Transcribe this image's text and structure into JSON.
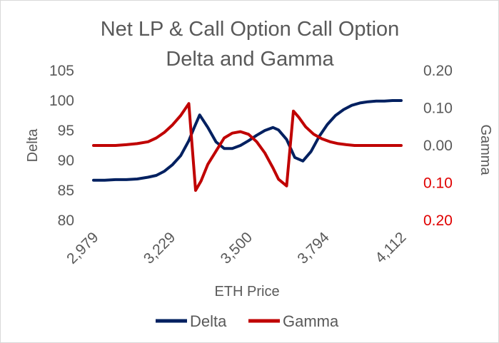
{
  "chart_data": {
    "type": "line",
    "title": [
      "Net LP & Call Option Call Option",
      "Delta and Gamma"
    ],
    "xlabel": "ETH Price",
    "ylabel": "Delta",
    "y2label": "Gamma",
    "x_ticks": [
      "2,979",
      "3,229",
      "3,500",
      "3,794",
      "4,112"
    ],
    "x_range": [
      2979,
      4112
    ],
    "ylim": [
      80,
      105
    ],
    "y_ticks": [
      "105",
      "100",
      "95",
      "90",
      "85",
      "80"
    ],
    "y2lim": [
      -0.2,
      0.2
    ],
    "y2_ticks": [
      "0.20",
      "0.10",
      "0.00",
      "0.10",
      "0.20"
    ],
    "grid": false,
    "legend": "bottom",
    "series": [
      {
        "name": "Delta",
        "color": "#002060",
        "axis": "left",
        "x": [
          2979,
          3020,
          3060,
          3100,
          3140,
          3180,
          3210,
          3240,
          3270,
          3300,
          3330,
          3350,
          3370,
          3400,
          3430,
          3460,
          3490,
          3520,
          3550,
          3580,
          3610,
          3640,
          3660,
          3690,
          3720,
          3750,
          3780,
          3810,
          3840,
          3870,
          3900,
          3930,
          3960,
          3990,
          4020,
          4050,
          4080,
          4112
        ],
        "values": [
          86.7,
          86.7,
          86.8,
          86.8,
          86.9,
          87.2,
          87.5,
          88.2,
          89.3,
          90.8,
          93.3,
          95.5,
          97.6,
          95.5,
          93.1,
          92.0,
          92.0,
          92.5,
          93.3,
          94.2,
          95.0,
          95.5,
          95.1,
          93.5,
          90.5,
          89.9,
          91.5,
          94.0,
          96.0,
          97.5,
          98.5,
          99.2,
          99.6,
          99.8,
          99.9,
          99.9,
          100.0,
          100.0
        ]
      },
      {
        "name": "Gamma",
        "color": "#c00000",
        "axis": "right",
        "x": [
          2979,
          3020,
          3060,
          3100,
          3140,
          3180,
          3210,
          3240,
          3270,
          3300,
          3330,
          3355,
          3375,
          3400,
          3430,
          3460,
          3490,
          3520,
          3550,
          3580,
          3610,
          3640,
          3660,
          3690,
          3715,
          3735,
          3760,
          3790,
          3820,
          3850,
          3880,
          3910,
          3940,
          3970,
          4000,
          4030,
          4060,
          4090,
          4112
        ],
        "values": [
          0.0,
          0.0,
          0.0,
          0.002,
          0.005,
          0.01,
          0.02,
          0.035,
          0.055,
          0.08,
          0.112,
          -0.12,
          -0.095,
          -0.05,
          -0.015,
          0.02,
          0.033,
          0.037,
          0.03,
          0.01,
          -0.02,
          -0.06,
          -0.09,
          -0.108,
          0.092,
          0.075,
          0.05,
          0.03,
          0.018,
          0.01,
          0.005,
          0.002,
          0.0,
          0.0,
          0.0,
          0.0,
          0.0,
          0.0,
          0.0
        ]
      }
    ]
  }
}
